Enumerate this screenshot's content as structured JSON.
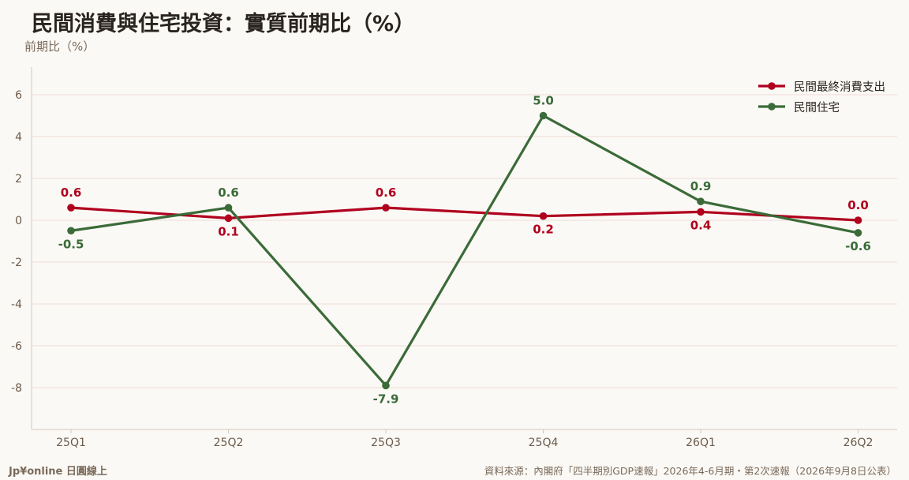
{
  "chart_data": {
    "type": "line",
    "title": "民間消費與住宅投資：實質前期比（%）",
    "ylabel": "前期比（%）",
    "categories": [
      "25Q1",
      "25Q2",
      "25Q3",
      "25Q4",
      "26Q1",
      "26Q2"
    ],
    "yticks": [
      "6",
      "4",
      "2",
      "0",
      "-2",
      "-4",
      "-6",
      "-8"
    ],
    "ylim": [
      -10,
      7.3
    ],
    "grid": true,
    "legend_position": "top-right",
    "series": [
      {
        "name": "民間最終消費支出",
        "color": "#b0001e",
        "values": [
          0.6,
          0.1,
          0.6,
          0.2,
          0.4,
          0.0
        ],
        "labels": [
          "0.6",
          "0.1",
          "0.6",
          "0.2",
          "0.4",
          "0.0"
        ],
        "label_positions": [
          "above",
          "below",
          "above",
          "below",
          "below",
          "above"
        ]
      },
      {
        "name": "民間住宅",
        "color": "#3a6b38",
        "values": [
          -0.5,
          0.6,
          -7.9,
          5.0,
          0.9,
          -0.6
        ],
        "labels": [
          "-0.5",
          "0.6",
          "-7.9",
          "5.0",
          "0.9",
          "-0.6"
        ],
        "label_positions": [
          "below",
          "above",
          "below",
          "above",
          "above",
          "below"
        ]
      }
    ]
  },
  "footer": {
    "brand": "Jp¥online 日圓線上",
    "source": "資料來源：內閣府「四半期別GDP速報」2026年4-6月期・第2次速報（2026年9月8日公表）"
  }
}
